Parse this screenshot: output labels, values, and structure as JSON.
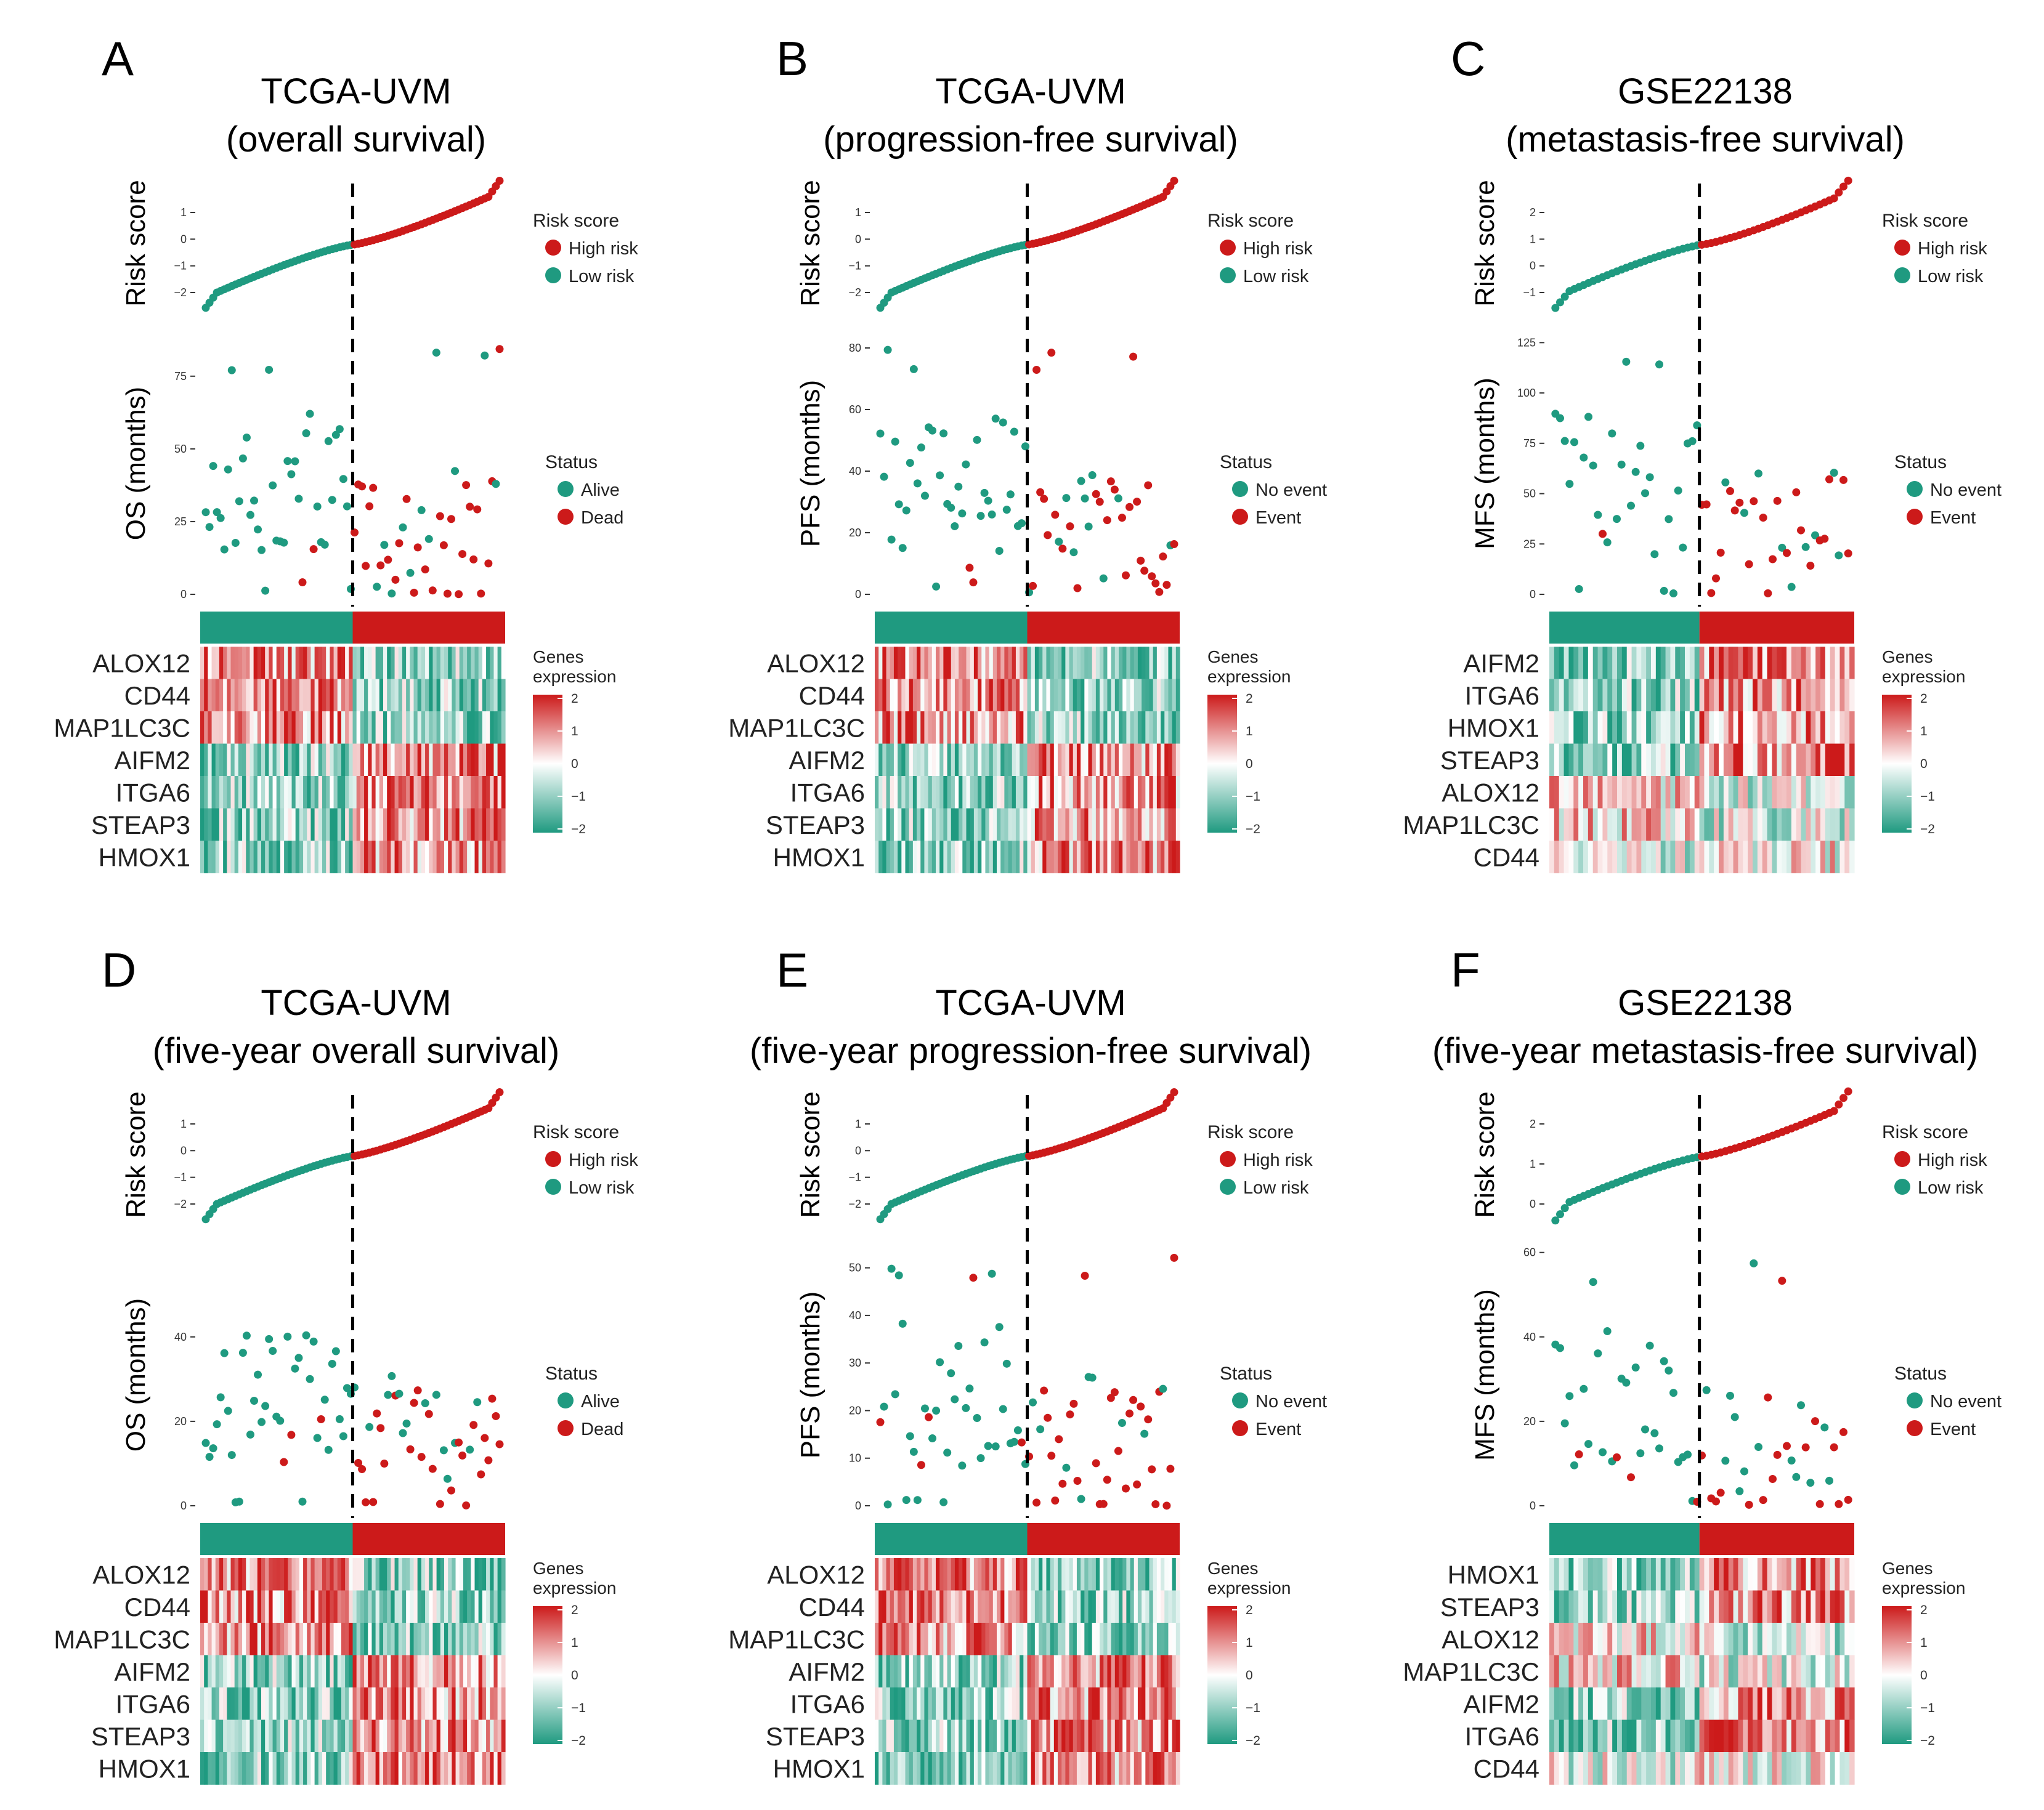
{
  "figure": {
    "type": "risk-score composite panels"
  },
  "colors": {
    "high": "#cc1a1a",
    "low": "#1f9a80",
    "mid": "#ffffff",
    "line": "#000000"
  },
  "legends": {
    "risk_title": "Risk score",
    "high_label": "High risk",
    "low_label": "Low risk",
    "status_title": "Status",
    "status_os": [
      "Alive",
      "Dead"
    ],
    "status_event": [
      "No event",
      "Event"
    ],
    "genes_title_1": "Genes",
    "genes_title_2": "expression",
    "heat_ticks": [
      "2",
      "1",
      "0",
      "−1",
      "−2"
    ]
  },
  "chart_data": [
    {
      "panel": "A",
      "title_1": "TCGA-UVM",
      "title_2": "(overall survival)",
      "type": "risk_plot",
      "n": 80,
      "n_low": 40,
      "seed": 11,
      "risk_ylabel": "Risk score",
      "risk_ticks": [
        "1",
        "0",
        "−1",
        "−2"
      ],
      "risk_ylim": [
        -2.2,
        1.9
      ],
      "surv_ylabel": "OS (months)",
      "surv_ticks": [
        "75",
        "50",
        "25",
        "0"
      ],
      "surv_ylim": [
        0,
        90
      ],
      "status_kind": "os",
      "genes": [
        "ALOX12",
        "CD44",
        "MAP1LC3C",
        "AIFM2",
        "ITGA6",
        "STEAP3",
        "HMOX1"
      ],
      "gene_bias": [
        -1,
        -1,
        -1,
        1,
        1,
        1,
        1
      ]
    },
    {
      "panel": "B",
      "title_1": "TCGA-UVM",
      "title_2": "(progression-free survival)",
      "type": "risk_plot",
      "n": 80,
      "n_low": 40,
      "seed": 23,
      "risk_ylabel": "Risk score",
      "risk_ticks": [
        "1",
        "0",
        "−1",
        "−2"
      ],
      "risk_ylim": [
        -2.2,
        1.9
      ],
      "surv_ylabel": "PFS (months)",
      "surv_ticks": [
        "80",
        "60",
        "40",
        "20",
        "0"
      ],
      "surv_ylim": [
        0,
        85
      ],
      "status_kind": "event",
      "genes": [
        "ALOX12",
        "CD44",
        "MAP1LC3C",
        "AIFM2",
        "ITGA6",
        "STEAP3",
        "HMOX1"
      ],
      "gene_bias": [
        -1,
        -1,
        -1,
        1,
        1,
        1,
        1
      ]
    },
    {
      "panel": "C",
      "title_1": "GSE22138",
      "title_2": "(metastasis-free survival)",
      "type": "risk_plot",
      "n": 63,
      "n_low": 31,
      "seed": 37,
      "risk_ylabel": "Risk score",
      "risk_ticks": [
        "2",
        "1",
        "0",
        "−1"
      ],
      "risk_ylim": [
        -1.3,
        2.7
      ],
      "surv_ylabel": "MFS (months)",
      "surv_ticks": [
        "125",
        "100",
        "75",
        "50",
        "25",
        "0"
      ],
      "surv_ylim": [
        0,
        130
      ],
      "status_kind": "event",
      "genes": [
        "AIFM2",
        "ITGA6",
        "HMOX1",
        "STEAP3",
        "ALOX12",
        "MAP1LC3C",
        "CD44"
      ],
      "gene_bias": [
        1,
        1,
        1,
        1,
        -0.4,
        -0.4,
        0.2
      ]
    },
    {
      "panel": "D",
      "title_1": "TCGA-UVM",
      "title_2": "(five-year overall survival)",
      "type": "risk_plot",
      "n": 80,
      "n_low": 40,
      "seed": 41,
      "risk_ylabel": "Risk score",
      "risk_ticks": [
        "1",
        "0",
        "−1",
        "−2"
      ],
      "risk_ylim": [
        -2.2,
        1.9
      ],
      "surv_ylabel": "OS (months)",
      "surv_ticks": [
        "40",
        "20",
        "0"
      ],
      "surv_ylim": [
        0,
        62
      ],
      "status_kind": "os",
      "genes": [
        "ALOX12",
        "CD44",
        "MAP1LC3C",
        "AIFM2",
        "ITGA6",
        "STEAP3",
        "HMOX1"
      ],
      "gene_bias": [
        -1,
        -1,
        -1,
        1,
        1,
        1,
        1
      ]
    },
    {
      "panel": "E",
      "title_1": "TCGA-UVM",
      "title_2": "(five-year progression-free survival)",
      "type": "risk_plot",
      "n": 80,
      "n_low": 40,
      "seed": 53,
      "risk_ylabel": "Risk score",
      "risk_ticks": [
        "1",
        "0",
        "−1",
        "−2"
      ],
      "risk_ylim": [
        -2.2,
        1.9
      ],
      "surv_ylabel": "PFS (months)",
      "surv_ticks": [
        "50",
        "40",
        "30",
        "20",
        "10",
        "0"
      ],
      "surv_ylim": [
        0,
        55
      ],
      "status_kind": "event",
      "genes": [
        "ALOX12",
        "CD44",
        "MAP1LC3C",
        "AIFM2",
        "ITGA6",
        "STEAP3",
        "HMOX1"
      ],
      "gene_bias": [
        -1,
        -1,
        -1,
        1,
        1,
        1,
        1
      ]
    },
    {
      "panel": "F",
      "title_1": "GSE22138",
      "title_2": "(five-year metastasis-free survival)",
      "type": "risk_plot",
      "n": 63,
      "n_low": 31,
      "seed": 67,
      "risk_ylabel": "Risk score",
      "risk_ticks": [
        "2",
        "1",
        "0"
      ],
      "risk_ylim": [
        -0.6,
        2.8
      ],
      "surv_ylabel": "MFS (months)",
      "surv_ticks": [
        "60",
        "40",
        "20",
        "0"
      ],
      "surv_ylim": [
        0,
        62
      ],
      "status_kind": "event",
      "genes": [
        "HMOX1",
        "STEAP3",
        "ALOX12",
        "MAP1LC3C",
        "AIFM2",
        "ITGA6",
        "CD44"
      ],
      "gene_bias": [
        1,
        1,
        -0.4,
        -0.4,
        1,
        1,
        0.2
      ]
    }
  ]
}
